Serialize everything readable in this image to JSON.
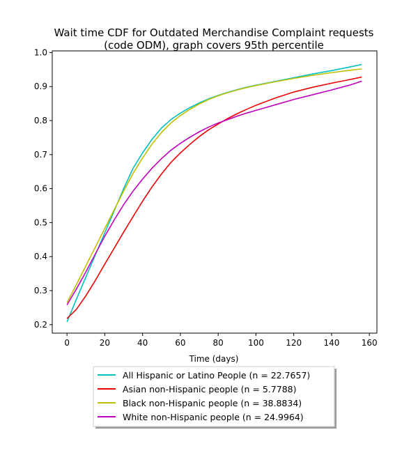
{
  "chart_data": {
    "type": "line",
    "title_lines": [
      "Wait time CDF for Outdated Merchandise Complaint  requests",
      "(code ODM), graph covers 95th percentile"
    ],
    "xlabel": "Time (days)",
    "ylabel": "",
    "xlim": [
      -7.8,
      164
    ],
    "ylim": [
      0.175,
      1.005
    ],
    "xticks": [
      0,
      20,
      40,
      60,
      80,
      100,
      120,
      140,
      160
    ],
    "yticks": [
      0.2,
      0.3,
      0.4,
      0.5,
      0.6,
      0.7,
      0.8,
      0.9,
      1.0
    ],
    "grid": false,
    "legend_position": "below-chart",
    "series": [
      {
        "name": "All Hispanic or Latino People (n = 22.7657)",
        "color": "#00bfbf",
        "x": [
          0,
          5,
          10,
          15,
          20,
          25,
          30,
          35,
          40,
          45,
          50,
          55,
          60,
          65,
          70,
          75,
          80,
          85,
          90,
          95,
          100,
          110,
          120,
          130,
          140,
          150,
          156
        ],
        "y": [
          0.208,
          0.275,
          0.34,
          0.405,
          0.47,
          0.535,
          0.6,
          0.66,
          0.705,
          0.745,
          0.778,
          0.803,
          0.822,
          0.838,
          0.852,
          0.864,
          0.874,
          0.883,
          0.891,
          0.898,
          0.904,
          0.915,
          0.926,
          0.937,
          0.947,
          0.958,
          0.965
        ]
      },
      {
        "name": "Asian non-Hispanic people (n = 5.7788)",
        "color": "#ee0000",
        "x": [
          0,
          5,
          10,
          15,
          20,
          25,
          30,
          35,
          40,
          45,
          50,
          55,
          60,
          65,
          70,
          75,
          80,
          85,
          90,
          95,
          100,
          110,
          120,
          130,
          140,
          150,
          156
        ],
        "y": [
          0.218,
          0.245,
          0.285,
          0.33,
          0.378,
          0.425,
          0.472,
          0.518,
          0.563,
          0.605,
          0.643,
          0.677,
          0.705,
          0.73,
          0.753,
          0.773,
          0.79,
          0.806,
          0.82,
          0.833,
          0.845,
          0.866,
          0.884,
          0.898,
          0.91,
          0.921,
          0.928
        ]
      },
      {
        "name": "Black non-Hispanic people (n = 38.8834)",
        "color": "#bfbf00",
        "x": [
          0,
          5,
          10,
          15,
          20,
          25,
          30,
          35,
          40,
          45,
          50,
          55,
          60,
          65,
          70,
          75,
          80,
          85,
          90,
          95,
          100,
          110,
          120,
          130,
          140,
          150,
          156
        ],
        "y": [
          0.265,
          0.318,
          0.373,
          0.428,
          0.483,
          0.538,
          0.593,
          0.645,
          0.69,
          0.731,
          0.765,
          0.793,
          0.815,
          0.833,
          0.849,
          0.862,
          0.873,
          0.882,
          0.89,
          0.897,
          0.903,
          0.914,
          0.924,
          0.933,
          0.941,
          0.948,
          0.952
        ]
      },
      {
        "name": "White non-Hispanic people (n = 24.9964)",
        "color": "#bf00bf",
        "x": [
          0,
          5,
          10,
          15,
          20,
          25,
          30,
          35,
          40,
          45,
          50,
          55,
          60,
          65,
          70,
          75,
          80,
          85,
          90,
          95,
          100,
          110,
          120,
          130,
          140,
          150,
          156
        ],
        "y": [
          0.258,
          0.305,
          0.355,
          0.408,
          0.46,
          0.508,
          0.553,
          0.593,
          0.628,
          0.66,
          0.688,
          0.713,
          0.733,
          0.751,
          0.767,
          0.781,
          0.793,
          0.803,
          0.813,
          0.822,
          0.83,
          0.846,
          0.862,
          0.876,
          0.89,
          0.905,
          0.916
        ]
      }
    ]
  }
}
